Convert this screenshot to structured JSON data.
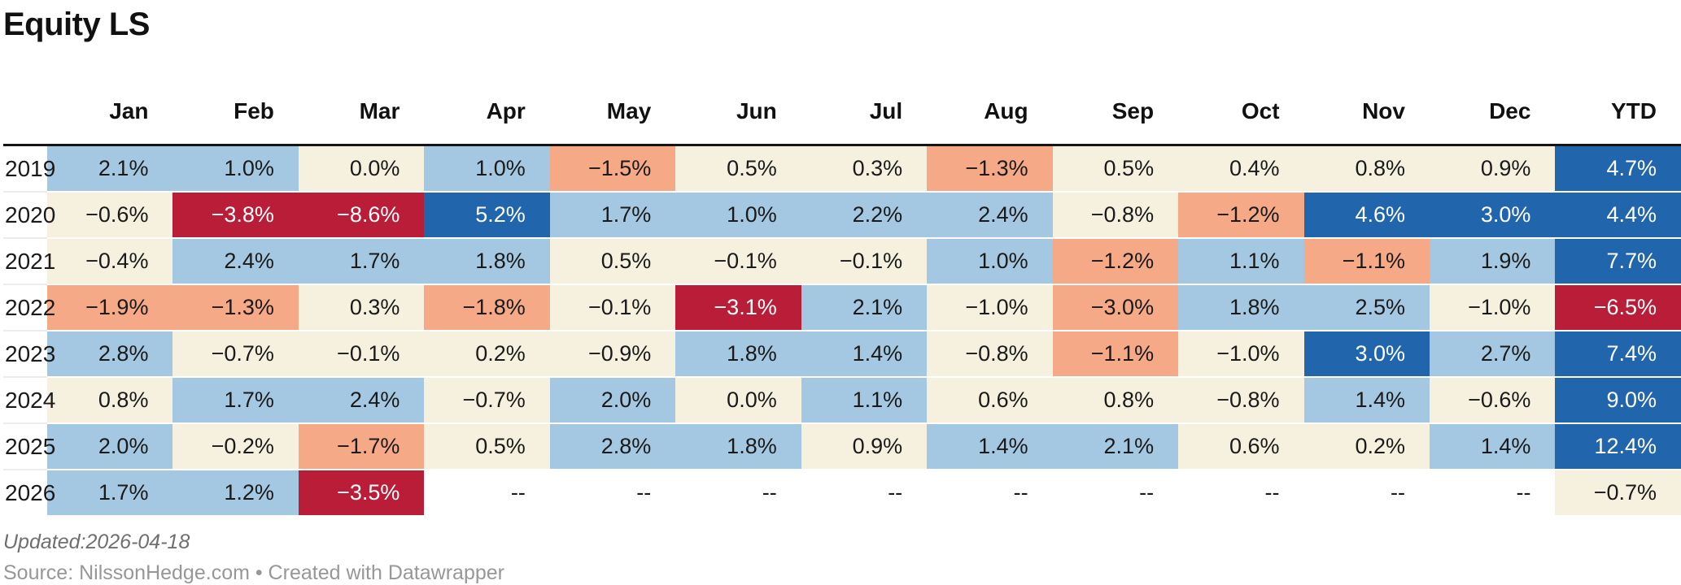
{
  "title": "Equity LS",
  "footer": {
    "updated": "Updated:2026-04-18",
    "source": "Source: NilssonHedge.com • Created with Datawrapper"
  },
  "palette": {
    "up": "#a4c8e1",
    "up-strong": "#2166ac",
    "flat": "#f5f1de",
    "down": "#f5a986",
    "down-strong": "#b91d37",
    "empty": "#ffffff",
    "text-dark": "#1a1a1a",
    "text-light": "#ffffff"
  },
  "chart_data": {
    "type": "heatmap",
    "title": "Equity LS",
    "columns": [
      "Jan",
      "Feb",
      "Mar",
      "Apr",
      "May",
      "Jun",
      "Jul",
      "Aug",
      "Sep",
      "Oct",
      "Nov",
      "Dec",
      "YTD"
    ],
    "color_legend": {
      "up-strong": "strongly positive month (dark blue)",
      "up": "positive month (light blue)",
      "flat": "near-zero month (cream)",
      "down": "negative month (salmon)",
      "down-strong": "strongly negative month (dark red)",
      "empty": "no data"
    },
    "rows": [
      {
        "year": "2019",
        "cells": [
          {
            "t": "2.1%",
            "c": "up"
          },
          {
            "t": "1.0%",
            "c": "up"
          },
          {
            "t": "0.0%",
            "c": "flat"
          },
          {
            "t": "1.0%",
            "c": "up"
          },
          {
            "t": "−1.5%",
            "c": "down"
          },
          {
            "t": "0.5%",
            "c": "flat"
          },
          {
            "t": "0.3%",
            "c": "flat"
          },
          {
            "t": "−1.3%",
            "c": "down"
          },
          {
            "t": "0.5%",
            "c": "flat"
          },
          {
            "t": "0.4%",
            "c": "flat"
          },
          {
            "t": "0.8%",
            "c": "flat"
          },
          {
            "t": "0.9%",
            "c": "flat"
          },
          {
            "t": "4.7%",
            "c": "up-strong"
          }
        ]
      },
      {
        "year": "2020",
        "cells": [
          {
            "t": "−0.6%",
            "c": "flat"
          },
          {
            "t": "−3.8%",
            "c": "down-strong"
          },
          {
            "t": "−8.6%",
            "c": "down-strong"
          },
          {
            "t": "5.2%",
            "c": "up-strong"
          },
          {
            "t": "1.7%",
            "c": "up"
          },
          {
            "t": "1.0%",
            "c": "up"
          },
          {
            "t": "2.2%",
            "c": "up"
          },
          {
            "t": "2.4%",
            "c": "up"
          },
          {
            "t": "−0.8%",
            "c": "flat"
          },
          {
            "t": "−1.2%",
            "c": "down"
          },
          {
            "t": "4.6%",
            "c": "up-strong"
          },
          {
            "t": "3.0%",
            "c": "up-strong"
          },
          {
            "t": "4.4%",
            "c": "up-strong"
          }
        ]
      },
      {
        "year": "2021",
        "cells": [
          {
            "t": "−0.4%",
            "c": "flat"
          },
          {
            "t": "2.4%",
            "c": "up"
          },
          {
            "t": "1.7%",
            "c": "up"
          },
          {
            "t": "1.8%",
            "c": "up"
          },
          {
            "t": "0.5%",
            "c": "flat"
          },
          {
            "t": "−0.1%",
            "c": "flat"
          },
          {
            "t": "−0.1%",
            "c": "flat"
          },
          {
            "t": "1.0%",
            "c": "up"
          },
          {
            "t": "−1.2%",
            "c": "down"
          },
          {
            "t": "1.1%",
            "c": "up"
          },
          {
            "t": "−1.1%",
            "c": "down"
          },
          {
            "t": "1.9%",
            "c": "up"
          },
          {
            "t": "7.7%",
            "c": "up-strong"
          }
        ]
      },
      {
        "year": "2022",
        "cells": [
          {
            "t": "−1.9%",
            "c": "down"
          },
          {
            "t": "−1.3%",
            "c": "down"
          },
          {
            "t": "0.3%",
            "c": "flat"
          },
          {
            "t": "−1.8%",
            "c": "down"
          },
          {
            "t": "−0.1%",
            "c": "flat"
          },
          {
            "t": "−3.1%",
            "c": "down-strong"
          },
          {
            "t": "2.1%",
            "c": "up"
          },
          {
            "t": "−1.0%",
            "c": "flat"
          },
          {
            "t": "−3.0%",
            "c": "down"
          },
          {
            "t": "1.8%",
            "c": "up"
          },
          {
            "t": "2.5%",
            "c": "up"
          },
          {
            "t": "−1.0%",
            "c": "flat"
          },
          {
            "t": "−6.5%",
            "c": "down-strong"
          }
        ]
      },
      {
        "year": "2023",
        "cells": [
          {
            "t": "2.8%",
            "c": "up"
          },
          {
            "t": "−0.7%",
            "c": "flat"
          },
          {
            "t": "−0.1%",
            "c": "flat"
          },
          {
            "t": "0.2%",
            "c": "flat"
          },
          {
            "t": "−0.9%",
            "c": "flat"
          },
          {
            "t": "1.8%",
            "c": "up"
          },
          {
            "t": "1.4%",
            "c": "up"
          },
          {
            "t": "−0.8%",
            "c": "flat"
          },
          {
            "t": "−1.1%",
            "c": "down"
          },
          {
            "t": "−1.0%",
            "c": "flat"
          },
          {
            "t": "3.0%",
            "c": "up-strong"
          },
          {
            "t": "2.7%",
            "c": "up"
          },
          {
            "t": "7.4%",
            "c": "up-strong"
          }
        ]
      },
      {
        "year": "2024",
        "cells": [
          {
            "t": "0.8%",
            "c": "flat"
          },
          {
            "t": "1.7%",
            "c": "up"
          },
          {
            "t": "2.4%",
            "c": "up"
          },
          {
            "t": "−0.7%",
            "c": "flat"
          },
          {
            "t": "2.0%",
            "c": "up"
          },
          {
            "t": "0.0%",
            "c": "flat"
          },
          {
            "t": "1.1%",
            "c": "up"
          },
          {
            "t": "0.6%",
            "c": "flat"
          },
          {
            "t": "0.8%",
            "c": "flat"
          },
          {
            "t": "−0.8%",
            "c": "flat"
          },
          {
            "t": "1.4%",
            "c": "up"
          },
          {
            "t": "−0.6%",
            "c": "flat"
          },
          {
            "t": "9.0%",
            "c": "up-strong"
          }
        ]
      },
      {
        "year": "2025",
        "cells": [
          {
            "t": "2.0%",
            "c": "up"
          },
          {
            "t": "−0.2%",
            "c": "flat"
          },
          {
            "t": "−1.7%",
            "c": "down"
          },
          {
            "t": "0.5%",
            "c": "flat"
          },
          {
            "t": "2.8%",
            "c": "up"
          },
          {
            "t": "1.8%",
            "c": "up"
          },
          {
            "t": "0.9%",
            "c": "flat"
          },
          {
            "t": "1.4%",
            "c": "up"
          },
          {
            "t": "2.1%",
            "c": "up"
          },
          {
            "t": "0.6%",
            "c": "flat"
          },
          {
            "t": "0.2%",
            "c": "flat"
          },
          {
            "t": "1.4%",
            "c": "up"
          },
          {
            "t": "12.4%",
            "c": "up-strong"
          }
        ]
      },
      {
        "year": "2026",
        "cells": [
          {
            "t": "1.7%",
            "c": "up"
          },
          {
            "t": "1.2%",
            "c": "up"
          },
          {
            "t": "−3.5%",
            "c": "down-strong"
          },
          {
            "t": "--",
            "c": "empty"
          },
          {
            "t": "--",
            "c": "empty"
          },
          {
            "t": "--",
            "c": "empty"
          },
          {
            "t": "--",
            "c": "empty"
          },
          {
            "t": "--",
            "c": "empty"
          },
          {
            "t": "--",
            "c": "empty"
          },
          {
            "t": "--",
            "c": "empty"
          },
          {
            "t": "--",
            "c": "empty"
          },
          {
            "t": "--",
            "c": "empty"
          },
          {
            "t": "−0.7%",
            "c": "flat"
          }
        ]
      }
    ]
  }
}
